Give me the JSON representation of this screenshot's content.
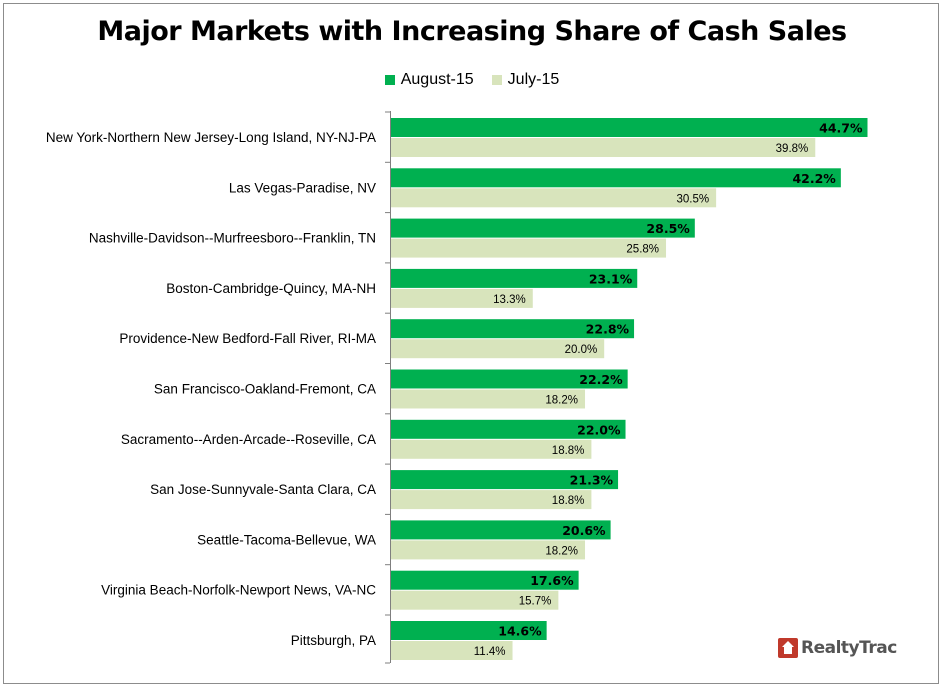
{
  "colors": {
    "august": "#00b050",
    "july": "#d8e4bc",
    "axis": "#7f7f7f"
  },
  "logo": {
    "text": "RealtyTrac",
    "icon": "house-icon"
  },
  "chart_data": {
    "type": "bar",
    "orientation": "horizontal",
    "title": "Major Markets with Increasing Share of Cash Sales",
    "legend_position": "top",
    "xlim": [
      0,
      50
    ],
    "grid": false,
    "categories": [
      "New York-Northern New Jersey-Long Island, NY-NJ-PA",
      "Las Vegas-Paradise, NV",
      "Nashville-Davidson--Murfreesboro--Franklin, TN",
      "Boston-Cambridge-Quincy, MA-NH",
      "Providence-New Bedford-Fall River, RI-MA",
      "San Francisco-Oakland-Fremont, CA",
      "Sacramento--Arden-Arcade--Roseville, CA",
      "San Jose-Sunnyvale-Santa Clara, CA",
      "Seattle-Tacoma-Bellevue, WA",
      "Virginia Beach-Norfolk-Newport News, VA-NC",
      "Pittsburgh, PA"
    ],
    "series": [
      {
        "name": "August-15",
        "values": [
          44.7,
          42.2,
          28.5,
          23.1,
          22.8,
          22.2,
          22.0,
          21.3,
          20.6,
          17.6,
          14.6
        ],
        "labels": [
          "44.7%",
          "42.2%",
          "28.5%",
          "23.1%",
          "22.8%",
          "22.2%",
          "22.0%",
          "21.3%",
          "20.6%",
          "17.6%",
          "14.6%"
        ]
      },
      {
        "name": "July-15",
        "values": [
          39.8,
          30.5,
          25.8,
          13.3,
          20.0,
          18.2,
          18.8,
          18.8,
          18.2,
          15.7,
          11.4
        ],
        "labels": [
          "39.8%",
          "30.5%",
          "25.8%",
          "13.3%",
          "20.0%",
          "18.2%",
          "18.8%",
          "18.8%",
          "18.2%",
          "15.7%",
          "11.4%"
        ]
      }
    ]
  }
}
